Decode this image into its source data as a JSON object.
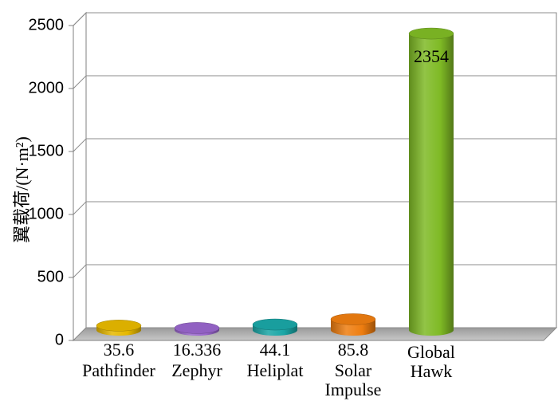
{
  "chart_data": {
    "type": "bar",
    "categories": [
      [
        "Pathfinder"
      ],
      [
        "Zephyr"
      ],
      [
        "Heliplat"
      ],
      [
        "Solar",
        "Impulse"
      ],
      [
        "Global",
        "Hawk"
      ]
    ],
    "values": [
      35.6,
      16.336,
      44.1,
      85.8,
      2354
    ],
    "value_labels": [
      "35.6",
      "16.336",
      "44.1",
      "85.8",
      "2354"
    ],
    "colors": [
      "#e6b800",
      "#9966cc",
      "#1aa6a6",
      "#ee7d10",
      "#7fba25"
    ],
    "ylabel": "翼载荷/(N·m²)",
    "ylim": [
      0,
      2500
    ],
    "yticks": [
      0,
      500,
      1000,
      1500,
      2000,
      2500
    ],
    "grid": true
  }
}
